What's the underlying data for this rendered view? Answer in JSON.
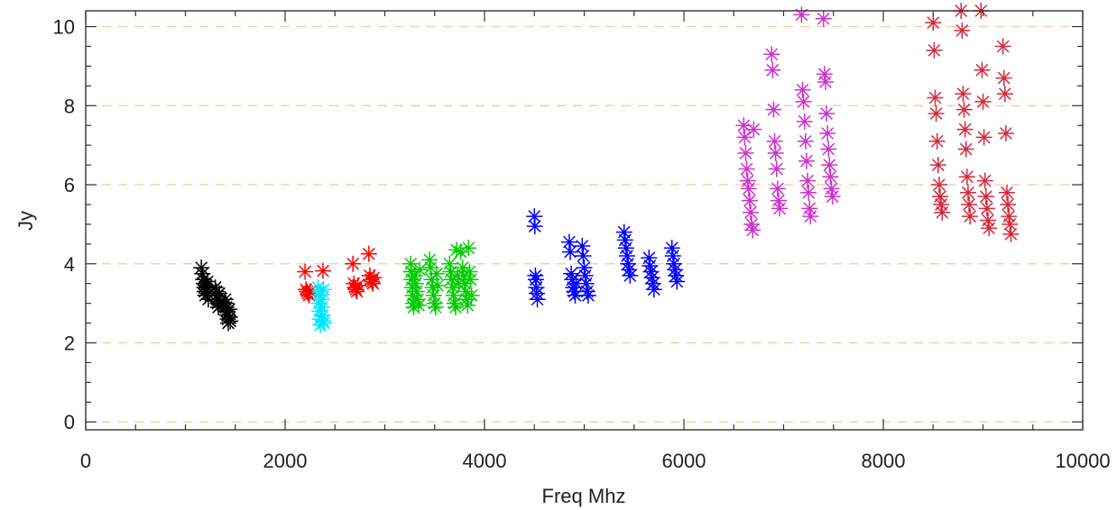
{
  "chart_data": {
    "type": "scatter",
    "title": "",
    "xlabel": "Freq Mhz",
    "ylabel": "Jy",
    "xlim": [
      0,
      10000
    ],
    "ylim": [
      -0.2,
      10.4
    ],
    "x_ticks": [
      0,
      2000,
      4000,
      6000,
      8000,
      10000
    ],
    "x_tick_labels": [
      "0",
      "2000",
      "4000",
      "6000",
      "8000",
      "10000"
    ],
    "y_ticks": [
      0,
      2,
      4,
      6,
      8,
      10
    ],
    "y_tick_labels": [
      "0",
      "2",
      "4",
      "6",
      "8",
      "10"
    ],
    "x_minor_step": 500,
    "y_minor_step": 0.5,
    "grid": true,
    "grid_style": "dashed",
    "grid_color": "#f2c99a",
    "marker": "asterisk",
    "series": [
      {
        "color": "#000000",
        "points": [
          [
            1160,
            3.9
          ],
          [
            1170,
            3.75
          ],
          [
            1180,
            3.6
          ],
          [
            1185,
            3.5
          ],
          [
            1190,
            3.4
          ],
          [
            1195,
            3.3
          ],
          [
            1200,
            3.2
          ],
          [
            1210,
            3.45
          ],
          [
            1215,
            3.35
          ],
          [
            1220,
            3.55
          ],
          [
            1225,
            3.25
          ],
          [
            1230,
            3.1
          ],
          [
            1300,
            3.4
          ],
          [
            1310,
            3.3
          ],
          [
            1315,
            3.2
          ],
          [
            1320,
            3.1
          ],
          [
            1325,
            3.0
          ],
          [
            1330,
            2.9
          ],
          [
            1340,
            3.25
          ],
          [
            1345,
            3.05
          ],
          [
            1350,
            2.95
          ],
          [
            1400,
            3.1
          ],
          [
            1405,
            3.0
          ],
          [
            1410,
            2.9
          ],
          [
            1415,
            2.8
          ],
          [
            1420,
            2.7
          ],
          [
            1425,
            2.6
          ],
          [
            1430,
            2.5
          ],
          [
            1440,
            2.85
          ],
          [
            1445,
            2.65
          ],
          [
            1450,
            2.55
          ]
        ]
      },
      {
        "color": "#ff0000",
        "points": [
          [
            2200,
            3.8
          ],
          [
            2210,
            3.35
          ],
          [
            2220,
            3.3
          ],
          [
            2230,
            3.25
          ],
          [
            2240,
            3.2
          ],
          [
            2250,
            3.3
          ],
          [
            2380,
            3.82
          ],
          [
            2680,
            4.0
          ],
          [
            2690,
            3.5
          ],
          [
            2700,
            3.4
          ],
          [
            2710,
            3.35
          ],
          [
            2720,
            3.3
          ],
          [
            2730,
            3.45
          ],
          [
            2840,
            4.25
          ],
          [
            2850,
            3.7
          ],
          [
            2860,
            3.6
          ],
          [
            2870,
            3.55
          ],
          [
            2880,
            3.5
          ],
          [
            2890,
            3.65
          ]
        ]
      },
      {
        "color": "#00e5ff",
        "points": [
          [
            2330,
            3.4
          ],
          [
            2335,
            3.2
          ],
          [
            2340,
            3.0
          ],
          [
            2345,
            2.8
          ],
          [
            2350,
            2.6
          ],
          [
            2355,
            2.45
          ],
          [
            2360,
            3.3
          ],
          [
            2365,
            3.1
          ],
          [
            2370,
            2.9
          ],
          [
            2375,
            2.7
          ],
          [
            2380,
            2.55
          ],
          [
            2385,
            3.35
          ],
          [
            2390,
            2.5
          ]
        ]
      },
      {
        "color": "#00cc00",
        "points": [
          [
            3260,
            4.0
          ],
          [
            3265,
            3.8
          ],
          [
            3270,
            3.6
          ],
          [
            3275,
            3.4
          ],
          [
            3280,
            3.2
          ],
          [
            3285,
            3.0
          ],
          [
            3290,
            2.9
          ],
          [
            3300,
            3.7
          ],
          [
            3310,
            3.5
          ],
          [
            3320,
            3.3
          ],
          [
            3330,
            3.1
          ],
          [
            3340,
            2.95
          ],
          [
            3350,
            3.85
          ],
          [
            3450,
            4.1
          ],
          [
            3460,
            3.9
          ],
          [
            3470,
            3.6
          ],
          [
            3480,
            3.4
          ],
          [
            3490,
            3.2
          ],
          [
            3500,
            3.0
          ],
          [
            3510,
            2.9
          ],
          [
            3520,
            3.75
          ],
          [
            3530,
            3.45
          ],
          [
            3650,
            4.0
          ],
          [
            3660,
            3.8
          ],
          [
            3670,
            3.6
          ],
          [
            3680,
            3.4
          ],
          [
            3690,
            3.2
          ],
          [
            3700,
            3.0
          ],
          [
            3710,
            2.9
          ],
          [
            3720,
            4.35
          ],
          [
            3730,
            3.7
          ],
          [
            3740,
            3.5
          ],
          [
            3760,
            4.3
          ],
          [
            3780,
            3.9
          ],
          [
            3790,
            3.7
          ],
          [
            3800,
            3.5
          ],
          [
            3810,
            3.3
          ],
          [
            3820,
            3.1
          ],
          [
            3830,
            2.95
          ],
          [
            3840,
            4.4
          ],
          [
            3850,
            3.8
          ],
          [
            3860,
            3.6
          ],
          [
            3870,
            3.2
          ]
        ]
      },
      {
        "color": "#0000ff",
        "points": [
          [
            4500,
            5.2
          ],
          [
            4505,
            4.95
          ],
          [
            4510,
            3.7
          ],
          [
            4515,
            3.6
          ],
          [
            4520,
            3.4
          ],
          [
            4525,
            3.25
          ],
          [
            4530,
            3.1
          ],
          [
            4850,
            4.55
          ],
          [
            4860,
            4.3
          ],
          [
            4870,
            3.75
          ],
          [
            4880,
            3.6
          ],
          [
            4890,
            3.4
          ],
          [
            4900,
            3.3
          ],
          [
            4910,
            3.2
          ],
          [
            4920,
            3.5
          ],
          [
            4980,
            4.45
          ],
          [
            4990,
            4.2
          ],
          [
            5000,
            3.9
          ],
          [
            5010,
            3.7
          ],
          [
            5020,
            3.5
          ],
          [
            5030,
            3.3
          ],
          [
            5040,
            3.2
          ],
          [
            5400,
            4.8
          ],
          [
            5410,
            4.6
          ],
          [
            5420,
            4.4
          ],
          [
            5430,
            4.2
          ],
          [
            5440,
            4.0
          ],
          [
            5450,
            3.85
          ],
          [
            5460,
            3.7
          ],
          [
            5650,
            4.15
          ],
          [
            5660,
            3.95
          ],
          [
            5670,
            3.8
          ],
          [
            5680,
            3.65
          ],
          [
            5690,
            3.5
          ],
          [
            5700,
            3.35
          ],
          [
            5880,
            4.4
          ],
          [
            5890,
            4.2
          ],
          [
            5900,
            4.0
          ],
          [
            5910,
            3.85
          ],
          [
            5920,
            3.7
          ],
          [
            5930,
            3.55
          ]
        ]
      },
      {
        "color": "#cc33cc",
        "points": [
          [
            6600,
            7.5
          ],
          [
            6610,
            7.2
          ],
          [
            6620,
            6.8
          ],
          [
            6630,
            6.4
          ],
          [
            6640,
            6.1
          ],
          [
            6650,
            5.9
          ],
          [
            6660,
            5.6
          ],
          [
            6670,
            5.3
          ],
          [
            6680,
            5.0
          ],
          [
            6690,
            4.85
          ],
          [
            6700,
            7.4
          ],
          [
            6880,
            9.3
          ],
          [
            6890,
            8.9
          ],
          [
            6900,
            7.9
          ],
          [
            6910,
            7.1
          ],
          [
            6920,
            6.8
          ],
          [
            6930,
            6.4
          ],
          [
            6940,
            5.9
          ],
          [
            6950,
            5.6
          ],
          [
            6960,
            5.4
          ],
          [
            7180,
            10.3
          ],
          [
            7190,
            8.4
          ],
          [
            7200,
            8.1
          ],
          [
            7210,
            7.6
          ],
          [
            7220,
            7.1
          ],
          [
            7230,
            6.6
          ],
          [
            7240,
            6.1
          ],
          [
            7250,
            5.8
          ],
          [
            7260,
            5.4
          ],
          [
            7270,
            5.2
          ],
          [
            7400,
            10.2
          ],
          [
            7410,
            8.8
          ],
          [
            7420,
            8.6
          ],
          [
            7430,
            7.8
          ],
          [
            7440,
            7.3
          ],
          [
            7450,
            6.9
          ],
          [
            7460,
            6.5
          ],
          [
            7470,
            6.2
          ],
          [
            7480,
            5.9
          ],
          [
            7490,
            5.7
          ]
        ]
      },
      {
        "color": "#d42a3c",
        "points": [
          [
            8500,
            10.1
          ],
          [
            8510,
            9.4
          ],
          [
            8520,
            8.2
          ],
          [
            8530,
            7.8
          ],
          [
            8540,
            7.1
          ],
          [
            8550,
            6.5
          ],
          [
            8560,
            6.0
          ],
          [
            8570,
            5.7
          ],
          [
            8580,
            5.5
          ],
          [
            8590,
            5.3
          ],
          [
            8780,
            10.4
          ],
          [
            8790,
            9.9
          ],
          [
            8800,
            8.3
          ],
          [
            8810,
            7.9
          ],
          [
            8820,
            7.4
          ],
          [
            8830,
            6.9
          ],
          [
            8840,
            6.2
          ],
          [
            8850,
            5.8
          ],
          [
            8860,
            5.5
          ],
          [
            8870,
            5.2
          ],
          [
            8980,
            10.4
          ],
          [
            8990,
            8.9
          ],
          [
            9000,
            8.1
          ],
          [
            9010,
            7.2
          ],
          [
            9020,
            6.1
          ],
          [
            9030,
            5.7
          ],
          [
            9040,
            5.4
          ],
          [
            9050,
            5.1
          ],
          [
            9060,
            4.9
          ],
          [
            9200,
            9.5
          ],
          [
            9210,
            8.7
          ],
          [
            9220,
            8.3
          ],
          [
            9230,
            7.3
          ],
          [
            9240,
            5.8
          ],
          [
            9250,
            5.5
          ],
          [
            9260,
            5.2
          ],
          [
            9270,
            5.0
          ],
          [
            9280,
            4.75
          ]
        ]
      }
    ]
  }
}
